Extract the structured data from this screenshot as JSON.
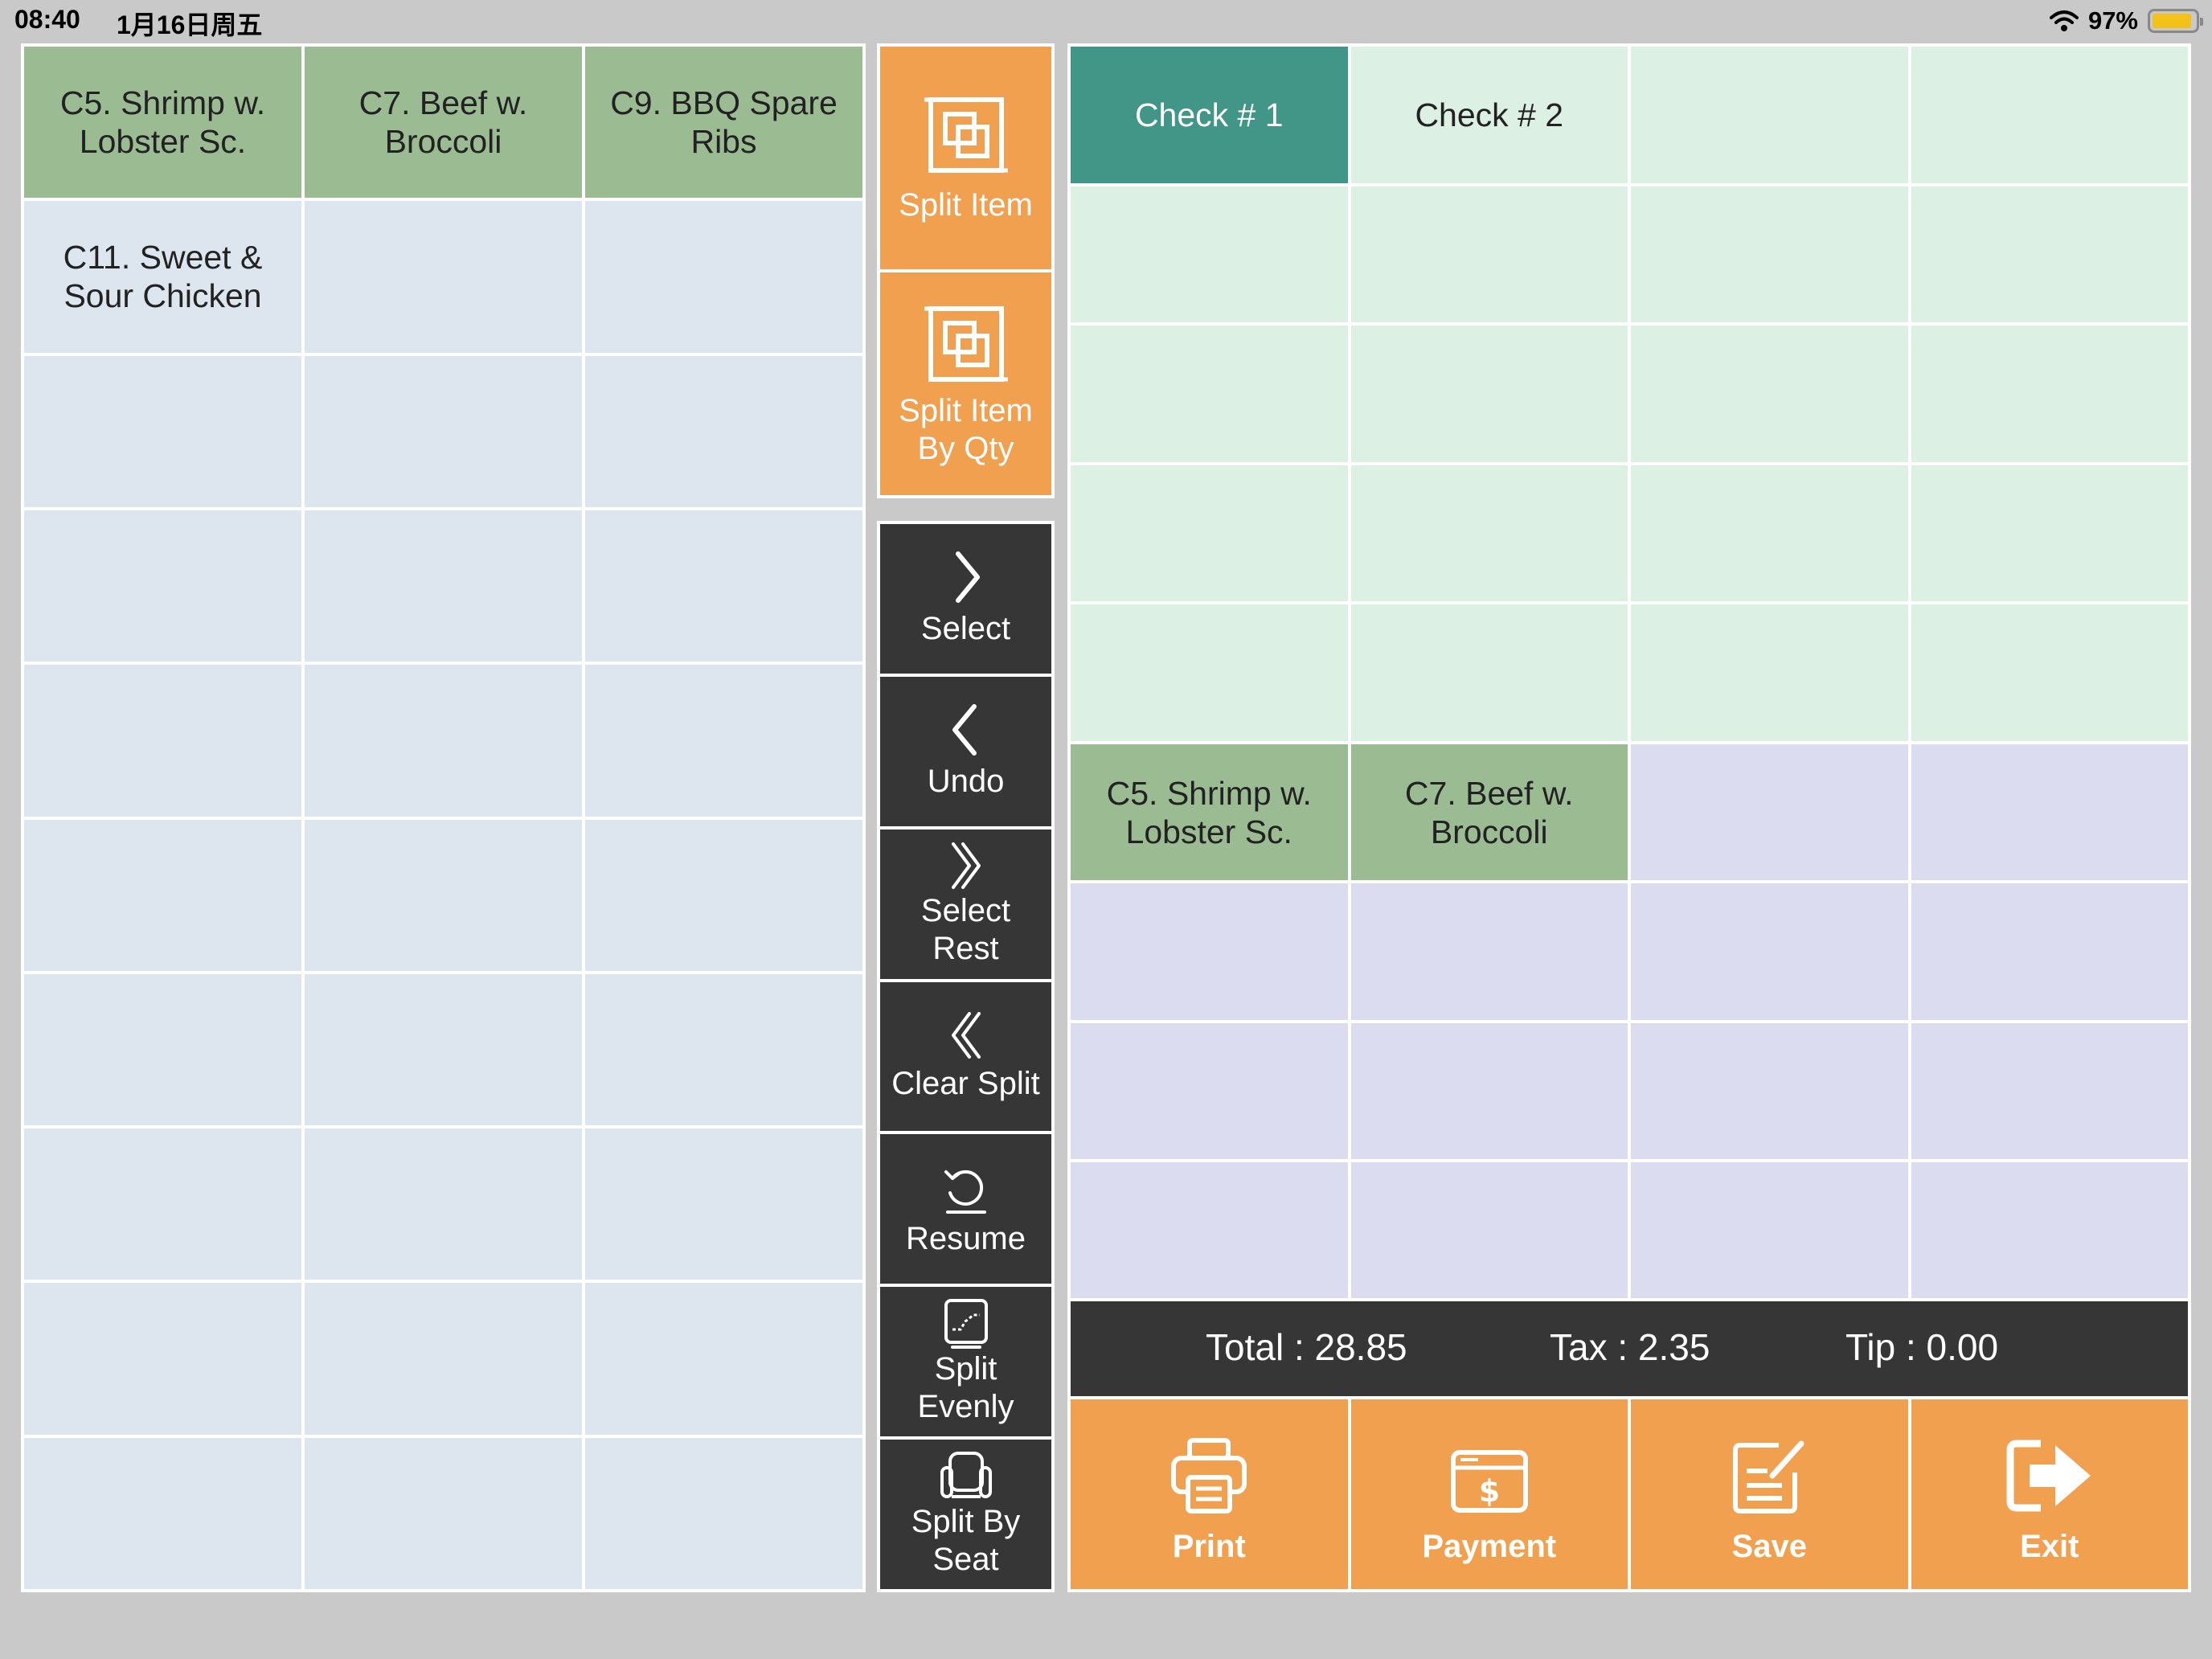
{
  "status": {
    "time": "08:40",
    "date": "1月16日周五",
    "battery": "97%"
  },
  "colors": {
    "orange": "#f0a04f",
    "dark": "#363636",
    "item_green": "#9bbc93",
    "active_check": "#419688"
  },
  "left_grid": {
    "items": [
      "C5. Shrimp w.\nLobster Sc.",
      "C7. Beef w.\nBroccoli",
      "C9. BBQ Spare\nRibs",
      "C11. Sweet &\nSour Chicken"
    ]
  },
  "side_buttons": {
    "split_item": {
      "label": "Split Item",
      "icon": "split-item-icon"
    },
    "split_item_qty": {
      "label": "Split Item\nBy Qty",
      "icon": "split-item-qty-icon"
    },
    "select": {
      "label": "Select",
      "icon": "chevron-right-icon"
    },
    "undo": {
      "label": "Undo",
      "icon": "chevron-left-icon"
    },
    "select_rest": {
      "label": "Select\nRest",
      "icon": "double-chevron-right-icon"
    },
    "clear_split": {
      "label": "Clear Split",
      "icon": "double-chevron-left-icon"
    },
    "resume": {
      "label": "Resume",
      "icon": "resume-icon"
    },
    "split_evenly": {
      "label": "Split\nEvenly",
      "icon": "split-evenly-icon"
    },
    "split_by_seat": {
      "label": "Split By\nSeat",
      "icon": "seat-icon"
    }
  },
  "checks": [
    "Check # 1",
    "Check # 2"
  ],
  "check_items": [
    "C5. Shrimp w.\nLobster Sc.",
    "C7. Beef w.\nBroccoli"
  ],
  "totals": {
    "total": "Total : 28.85",
    "tax": "Tax : 2.35",
    "tip": "Tip : 0.00"
  },
  "actions": {
    "print": {
      "label": "Print",
      "icon": "printer-icon"
    },
    "payment": {
      "label": "Payment",
      "icon": "payment-icon"
    },
    "save": {
      "label": "Save",
      "icon": "save-icon"
    },
    "exit": {
      "label": "Exit",
      "icon": "exit-icon"
    }
  }
}
